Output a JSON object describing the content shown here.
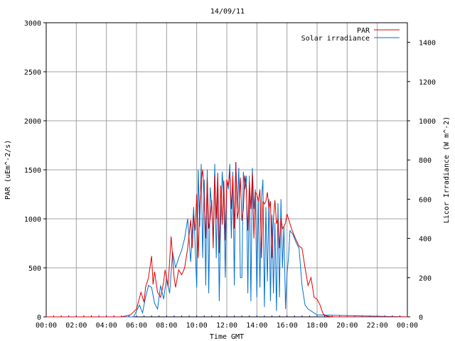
{
  "chart_data": {
    "type": "line",
    "title": "14/09/11",
    "xlabel": "Time GMT",
    "ylabel_left": "PAR (uEm^-2/s)",
    "ylabel_right": "Licor Irradiance (W m^-2)",
    "x_ticks": [
      "00:00",
      "02:00",
      "04:00",
      "06:00",
      "08:00",
      "10:00",
      "12:00",
      "14:00",
      "16:00",
      "18:00",
      "20:00",
      "22:00",
      "00:00"
    ],
    "x_tick_hours": [
      0,
      2,
      4,
      6,
      8,
      10,
      12,
      14,
      16,
      18,
      20,
      22,
      24
    ],
    "xlim": [
      0,
      24
    ],
    "y_left_ticks": [
      "0",
      "500",
      "1000",
      "1500",
      "2000",
      "2500",
      "3000"
    ],
    "y_left_tick_values": [
      0,
      500,
      1000,
      1500,
      2000,
      2500,
      3000
    ],
    "ylim_left": [
      0,
      3000
    ],
    "y_right_ticks": [
      "0",
      "200",
      "400",
      "600",
      "800",
      "1000",
      "1200",
      "1400"
    ],
    "y_right_tick_values": [
      0,
      200,
      400,
      600,
      800,
      1000,
      1200,
      1400
    ],
    "ylim_right": [
      0,
      1500
    ],
    "grid": true,
    "legend_position": "top-right",
    "series": [
      {
        "name": "PAR",
        "color": "#e00000",
        "axis": "left",
        "x": [
          0,
          5.0,
          5.6,
          6.0,
          6.3,
          6.5,
          6.6,
          6.8,
          7.0,
          7.1,
          7.2,
          7.4,
          7.6,
          7.8,
          7.9,
          8.1,
          8.3,
          8.5,
          8.6,
          8.8,
          9.0,
          9.1,
          9.2,
          9.4,
          9.6,
          9.7,
          9.8,
          9.9,
          10.0,
          10.1,
          10.2,
          10.3,
          10.4,
          10.5,
          10.6,
          10.7,
          10.8,
          10.9,
          11.0,
          11.1,
          11.2,
          11.3,
          11.4,
          11.5,
          11.6,
          11.7,
          11.8,
          11.9,
          12.0,
          12.1,
          12.2,
          12.3,
          12.4,
          12.5,
          12.6,
          12.7,
          12.8,
          12.9,
          13.0,
          13.1,
          13.2,
          13.3,
          13.4,
          13.5,
          13.6,
          13.7,
          13.8,
          13.9,
          14.0,
          14.1,
          14.2,
          14.3,
          14.4,
          14.5,
          14.6,
          14.7,
          14.8,
          14.9,
          15.0,
          15.1,
          15.2,
          15.3,
          15.4,
          15.5,
          15.6,
          15.7,
          15.8,
          15.9,
          16.0,
          16.1,
          16.3,
          16.5,
          16.8,
          17.0,
          17.2,
          17.4,
          17.6,
          17.8,
          18.0,
          18.2,
          18.4,
          18.6,
          19.0,
          19.5,
          20.0,
          24
        ],
        "values": [
          0,
          0,
          20,
          80,
          250,
          150,
          300,
          400,
          620,
          330,
          460,
          250,
          200,
          350,
          480,
          310,
          820,
          400,
          300,
          480,
          430,
          460,
          500,
          700,
          990,
          700,
          1040,
          880,
          1250,
          600,
          1120,
          1400,
          1500,
          1180,
          800,
          1420,
          900,
          1000,
          1190,
          700,
          1440,
          1000,
          1470,
          650,
          1340,
          940,
          1390,
          780,
          1400,
          1340,
          1480,
          1100,
          1440,
          900,
          1580,
          1000,
          1100,
          1420,
          980,
          1100,
          1440,
          1300,
          880,
          1380,
          1100,
          1460,
          800,
          1270,
          1250,
          1180,
          1300,
          600,
          1180,
          1150,
          1180,
          1270,
          1100,
          1180,
          600,
          1000,
          1190,
          950,
          1000,
          700,
          1010,
          900,
          920,
          960,
          1050,
          1000,
          900,
          820,
          720,
          700,
          500,
          320,
          400,
          200,
          180,
          120,
          30,
          10,
          0,
          0,
          0,
          0
        ]
      },
      {
        "name": "Solar irradiance",
        "color": "#0070d0",
        "axis": "right",
        "x": [
          0,
          5.8,
          6.0,
          6.2,
          6.4,
          6.6,
          6.8,
          7.0,
          7.2,
          7.4,
          7.6,
          7.8,
          8.0,
          8.2,
          8.4,
          8.6,
          8.8,
          9.0,
          9.2,
          9.4,
          9.6,
          9.8,
          10.0,
          10.1,
          10.2,
          10.3,
          10.4,
          10.5,
          10.6,
          10.7,
          10.8,
          10.9,
          11.0,
          11.1,
          11.2,
          11.3,
          11.4,
          11.5,
          11.6,
          11.7,
          11.8,
          11.9,
          12.0,
          12.1,
          12.2,
          12.3,
          12.4,
          12.5,
          12.6,
          12.7,
          12.8,
          12.9,
          13.0,
          13.1,
          13.2,
          13.3,
          13.4,
          13.5,
          13.6,
          13.7,
          13.8,
          13.9,
          14.0,
          14.1,
          14.2,
          14.3,
          14.4,
          14.5,
          14.6,
          14.7,
          14.8,
          14.9,
          15.0,
          15.1,
          15.2,
          15.3,
          15.4,
          15.5,
          15.6,
          15.7,
          15.8,
          15.9,
          16.0,
          16.1,
          16.2,
          16.4,
          16.6,
          16.8,
          17.0,
          17.2,
          17.4,
          17.6,
          17.8,
          18.0,
          24
        ],
        "values": [
          0,
          0,
          30,
          60,
          20,
          100,
          160,
          150,
          70,
          40,
          160,
          90,
          200,
          120,
          330,
          250,
          300,
          340,
          400,
          500,
          280,
          560,
          150,
          750,
          460,
          780,
          300,
          700,
          160,
          750,
          120,
          660,
          560,
          400,
          780,
          300,
          700,
          80,
          500,
          740,
          600,
          200,
          700,
          650,
          780,
          400,
          740,
          160,
          790,
          550,
          760,
          200,
          200,
          740,
          650,
          720,
          120,
          720,
          80,
          760,
          550,
          650,
          100,
          600,
          150,
          600,
          700,
          50,
          560,
          180,
          600,
          80,
          520,
          120,
          480,
          30,
          580,
          100,
          600,
          250,
          460,
          40,
          220,
          300,
          440,
          420,
          380,
          350,
          160,
          60,
          40,
          30,
          20,
          10,
          0
        ]
      }
    ]
  }
}
